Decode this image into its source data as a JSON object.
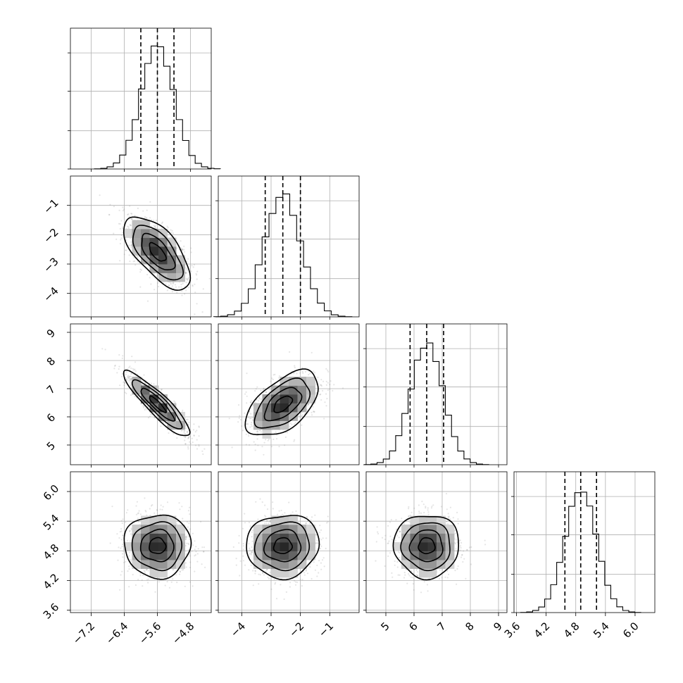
{
  "chart_data": {
    "type": "corner",
    "grid": true,
    "parameters": [
      {
        "index": 0,
        "range": [
          -7.7,
          -4.3
        ],
        "ticks": [
          -7.2,
          -6.4,
          -5.6,
          -4.8
        ],
        "tick_labels": [
          "−7.2",
          "−6.4",
          "−5.6",
          "−4.8"
        ],
        "mean": -5.6,
        "sd": 0.4,
        "quantiles": [
          -6.0,
          -5.6,
          -5.2
        ]
      },
      {
        "index": 1,
        "range": [
          -4.8,
          0.0
        ],
        "ticks": [
          -4,
          -3,
          -2,
          -1
        ],
        "tick_labels": [
          "−4",
          "−3",
          "−2",
          "−1"
        ],
        "mean": -2.6,
        "sd": 0.62,
        "quantiles": [
          -3.2,
          -2.6,
          -2.0
        ]
      },
      {
        "index": 2,
        "range": [
          4.3,
          9.3
        ],
        "ticks": [
          5,
          6,
          7,
          8,
          9
        ],
        "tick_labels": [
          "5",
          "6",
          "7",
          "8",
          "9"
        ],
        "mean": 6.45,
        "sd": 0.58,
        "quantiles": [
          5.86,
          6.45,
          7.05
        ]
      },
      {
        "index": 3,
        "range": [
          3.55,
          6.4
        ],
        "ticks": [
          3.6,
          4.2,
          4.8,
          5.4,
          6.0
        ],
        "tick_labels": [
          "3.6",
          "4.2",
          "4.8",
          "5.4",
          "6.0"
        ],
        "mean": 4.9,
        "sd": 0.32,
        "quantiles": [
          4.58,
          4.9,
          5.22
        ]
      }
    ],
    "bottom_axis_ticks": {
      "0": {
        "ticks": [
          -7.2,
          -6.4,
          -5.6,
          -4.8
        ],
        "labels": [
          "−7.2",
          "−6.4",
          "−5.6",
          "−4.8"
        ]
      },
      "1": {
        "ticks": [
          -4,
          -3,
          -2,
          -1
        ],
        "labels": [
          "−4",
          "−3",
          "−2",
          "−1"
        ]
      },
      "2": {
        "ticks": [
          5,
          6,
          7,
          8,
          9
        ],
        "labels": [
          "5",
          "6",
          "7",
          "8",
          "9"
        ]
      },
      "3": {
        "ticks": [
          3.6,
          4.2,
          4.8,
          5.4,
          6.0
        ],
        "labels": [
          "3.6",
          "4.2",
          "4.8",
          "5.4",
          "6.0"
        ]
      }
    },
    "correlations": {
      "1-0": -0.65,
      "2-0": -0.9,
      "2-1": 0.55,
      "3-0": 0.0,
      "3-1": 0.05,
      "3-2": 0.0
    },
    "contour_levels_sigma": [
      0.5,
      1.0,
      1.5,
      2.0
    ]
  }
}
